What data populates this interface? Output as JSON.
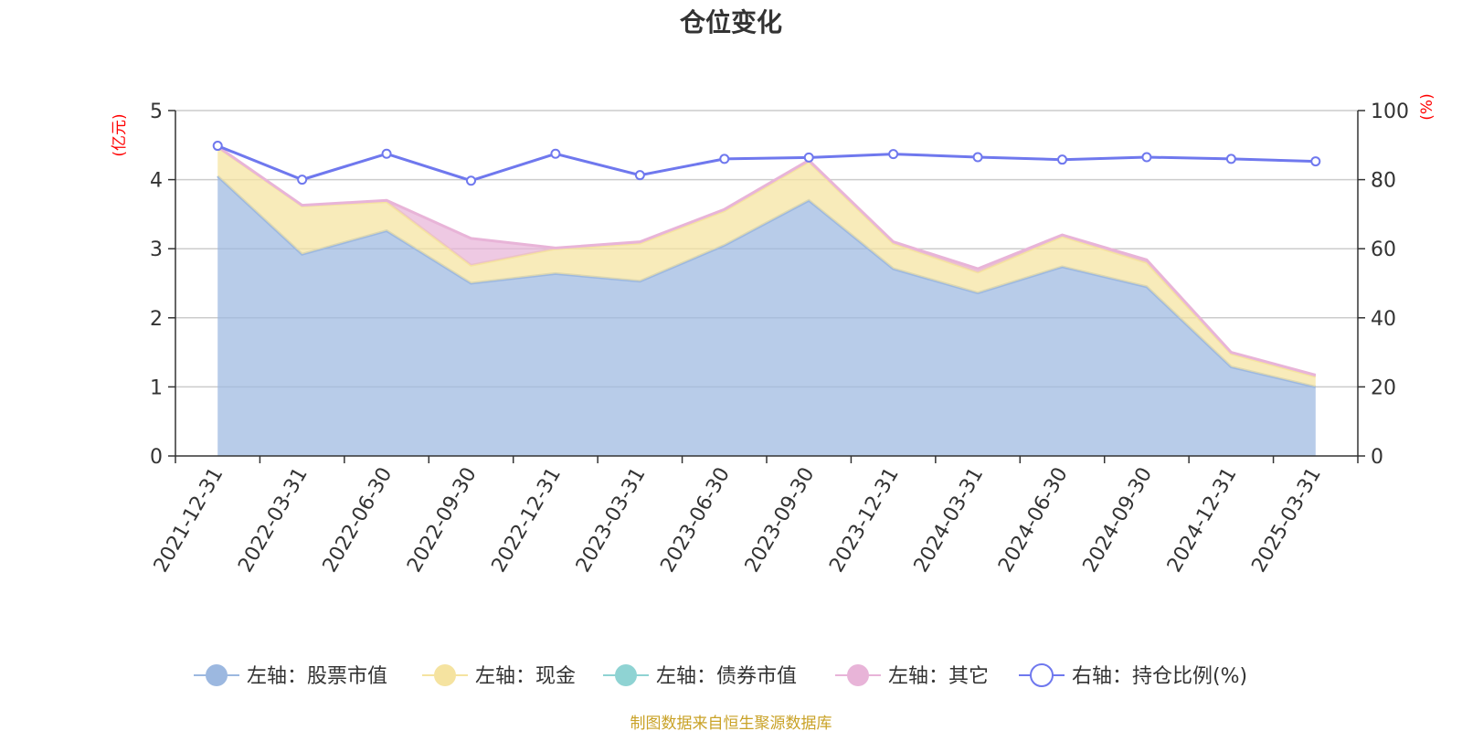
{
  "chart_data": {
    "type": "area",
    "title": "仓位变化",
    "left_axis": {
      "unit_label": "(亿元)",
      "ylim": [
        0,
        5
      ],
      "ticks": [
        "0",
        "1",
        "2",
        "3",
        "4",
        "5"
      ]
    },
    "right_axis": {
      "unit_label": "(%)",
      "ylim": [
        0,
        100
      ],
      "ticks": [
        "0",
        "20",
        "40",
        "60",
        "80",
        "100"
      ]
    },
    "categories": [
      "2021-12-31",
      "2022-03-31",
      "2022-06-30",
      "2022-09-30",
      "2022-12-31",
      "2023-03-31",
      "2023-06-30",
      "2023-09-30",
      "2023-12-31",
      "2024-03-31",
      "2024-06-30",
      "2024-09-30",
      "2024-12-31",
      "2025-03-31"
    ],
    "series": [
      {
        "name": "左轴：股票市值",
        "axis": "left",
        "kind": "stacked-area",
        "color": "#9cb8e0",
        "values": [
          4.05,
          2.92,
          3.26,
          2.5,
          2.64,
          2.53,
          3.05,
          3.7,
          2.71,
          2.36,
          2.74,
          2.45,
          1.29,
          1.0
        ]
      },
      {
        "name": "左轴：现金",
        "axis": "left",
        "kind": "stacked-area",
        "color": "#f5e3a0",
        "values": [
          0.42,
          0.7,
          0.42,
          0.26,
          0.36,
          0.55,
          0.5,
          0.56,
          0.37,
          0.3,
          0.44,
          0.35,
          0.19,
          0.15
        ]
      },
      {
        "name": "左轴：债券市值",
        "axis": "left",
        "kind": "stacked-area",
        "color": "#8fd3d3",
        "values": [
          0,
          0,
          0,
          0,
          0,
          0,
          0,
          0,
          0,
          0,
          0,
          0,
          0,
          0
        ]
      },
      {
        "name": "左轴：其它",
        "axis": "left",
        "kind": "stacked-area",
        "color": "#e8b4d8",
        "values": [
          0.01,
          0.01,
          0.02,
          0.39,
          0.01,
          0.02,
          0.02,
          0.02,
          0.02,
          0.05,
          0.02,
          0.04,
          0.02,
          0.02
        ]
      },
      {
        "name": "右轴：持仓比例(%)",
        "axis": "right",
        "kind": "line",
        "color": "#6f78ee",
        "values": [
          89.8,
          80.0,
          87.5,
          79.7,
          87.5,
          81.3,
          86.0,
          86.4,
          87.4,
          86.5,
          85.8,
          86.5,
          86.0,
          85.3
        ]
      }
    ],
    "legend_position": "bottom",
    "grid": true
  },
  "footer": {
    "source": "制图数据来自恒生聚源数据库"
  }
}
